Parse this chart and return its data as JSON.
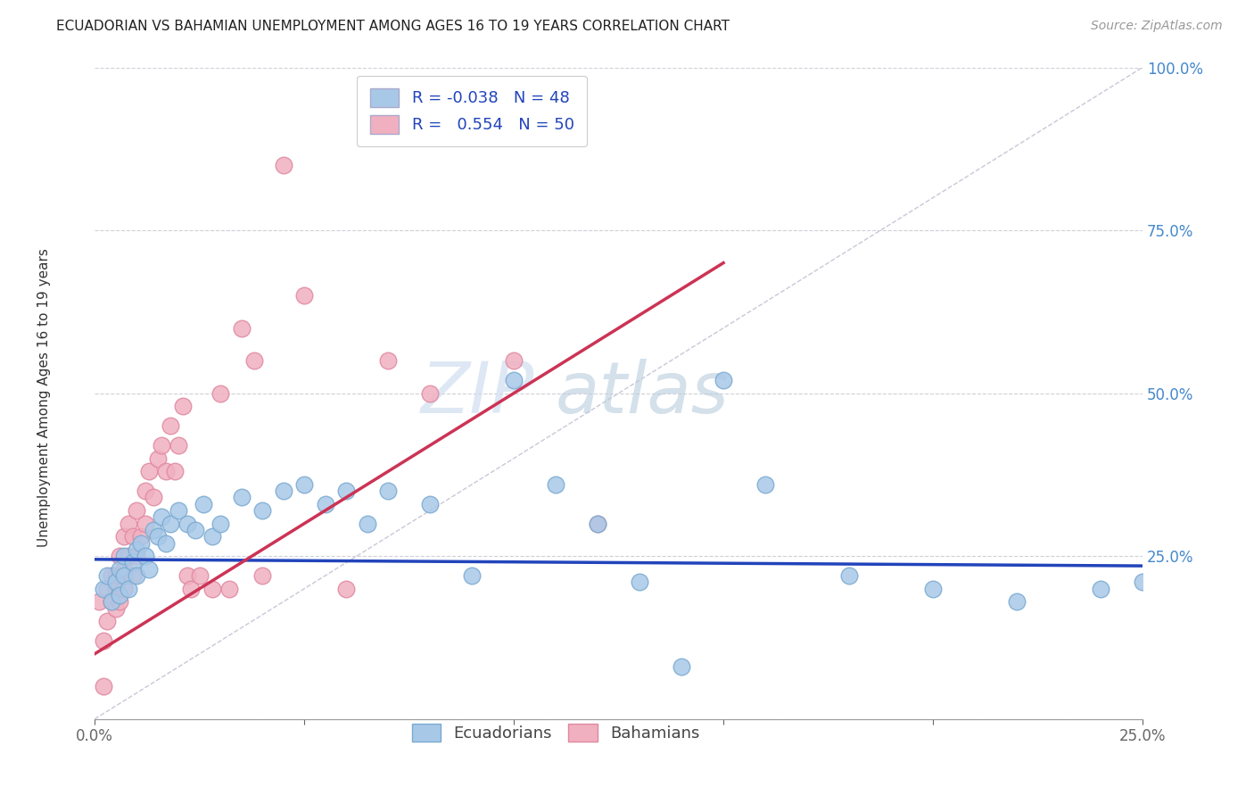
{
  "title": "ECUADORIAN VS BAHAMIAN UNEMPLOYMENT AMONG AGES 16 TO 19 YEARS CORRELATION CHART",
  "source": "Source: ZipAtlas.com",
  "ylabel": "Unemployment Among Ages 16 to 19 years",
  "x_min": 0.0,
  "x_max": 0.25,
  "y_min": 0.0,
  "y_max": 1.0,
  "diagonal_color": "#c8c8d8",
  "blue_color": "#a8c8e8",
  "pink_color": "#f0b0c0",
  "blue_line_color": "#2244bb",
  "pink_line_color": "#cc3355",
  "blue_edge_color": "#7aaad0",
  "pink_edge_color": "#e088a0",
  "watermark_zip": "ZIP",
  "watermark_atlas": "atlas",
  "blue_scatter_x": [
    0.002,
    0.003,
    0.004,
    0.005,
    0.006,
    0.006,
    0.007,
    0.007,
    0.008,
    0.009,
    0.01,
    0.01,
    0.011,
    0.012,
    0.013,
    0.014,
    0.015,
    0.016,
    0.017,
    0.018,
    0.02,
    0.022,
    0.024,
    0.026,
    0.028,
    0.03,
    0.035,
    0.04,
    0.045,
    0.05,
    0.055,
    0.06,
    0.065,
    0.07,
    0.08,
    0.09,
    0.1,
    0.11,
    0.12,
    0.13,
    0.14,
    0.15,
    0.16,
    0.18,
    0.2,
    0.22,
    0.24,
    0.25
  ],
  "blue_scatter_y": [
    0.2,
    0.22,
    0.18,
    0.21,
    0.19,
    0.23,
    0.25,
    0.22,
    0.2,
    0.24,
    0.26,
    0.22,
    0.27,
    0.25,
    0.23,
    0.29,
    0.28,
    0.31,
    0.27,
    0.3,
    0.32,
    0.3,
    0.29,
    0.33,
    0.28,
    0.3,
    0.34,
    0.32,
    0.35,
    0.36,
    0.33,
    0.35,
    0.3,
    0.35,
    0.33,
    0.22,
    0.52,
    0.36,
    0.3,
    0.21,
    0.08,
    0.52,
    0.36,
    0.22,
    0.2,
    0.18,
    0.2,
    0.21
  ],
  "pink_scatter_x": [
    0.001,
    0.002,
    0.002,
    0.003,
    0.003,
    0.004,
    0.004,
    0.005,
    0.005,
    0.005,
    0.006,
    0.006,
    0.006,
    0.007,
    0.007,
    0.007,
    0.008,
    0.008,
    0.009,
    0.009,
    0.01,
    0.01,
    0.011,
    0.012,
    0.012,
    0.013,
    0.014,
    0.015,
    0.016,
    0.017,
    0.018,
    0.019,
    0.02,
    0.021,
    0.022,
    0.023,
    0.025,
    0.028,
    0.03,
    0.032,
    0.035,
    0.038,
    0.04,
    0.045,
    0.05,
    0.06,
    0.07,
    0.08,
    0.1,
    0.12
  ],
  "pink_scatter_y": [
    0.18,
    0.05,
    0.12,
    0.2,
    0.15,
    0.22,
    0.18,
    0.17,
    0.22,
    0.2,
    0.25,
    0.18,
    0.22,
    0.28,
    0.23,
    0.2,
    0.3,
    0.25,
    0.28,
    0.22,
    0.32,
    0.25,
    0.28,
    0.35,
    0.3,
    0.38,
    0.34,
    0.4,
    0.42,
    0.38,
    0.45,
    0.38,
    0.42,
    0.48,
    0.22,
    0.2,
    0.22,
    0.2,
    0.5,
    0.2,
    0.6,
    0.55,
    0.22,
    0.85,
    0.65,
    0.2,
    0.55,
    0.5,
    0.55,
    0.3
  ],
  "blue_line_x0": 0.0,
  "blue_line_x1": 0.25,
  "blue_line_y0": 0.245,
  "blue_line_y1": 0.235,
  "pink_line_x0": 0.0,
  "pink_line_x1": 0.15,
  "pink_line_y0": 0.1,
  "pink_line_y1": 0.7
}
